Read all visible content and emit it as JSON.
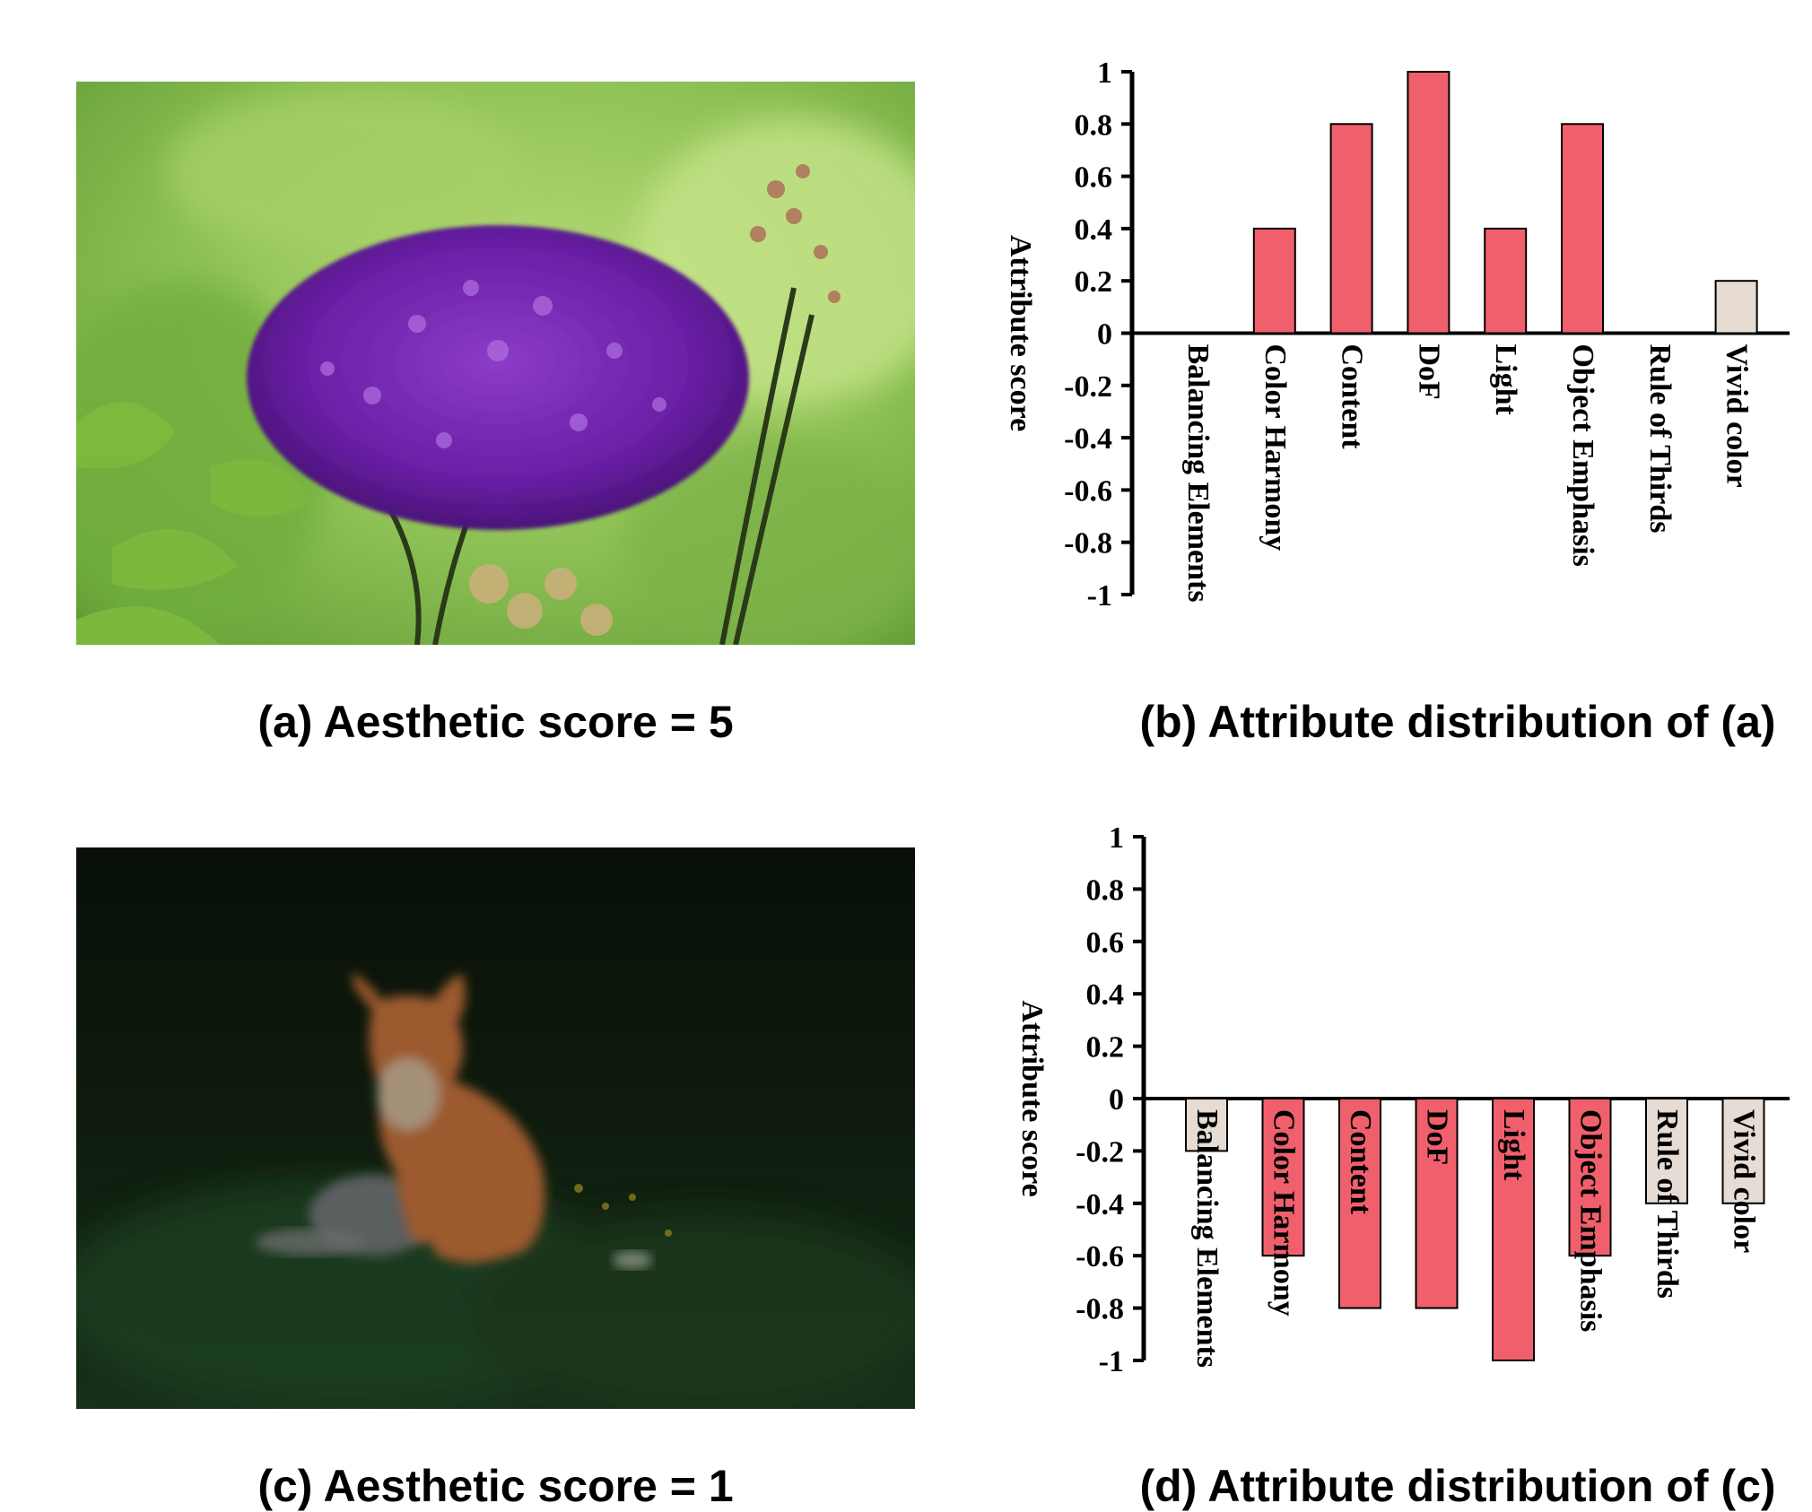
{
  "panels": {
    "a": {
      "caption": "(a) Aesthetic score = 5"
    },
    "b": {
      "caption": "(b) Attribute distribution of (a)"
    },
    "c": {
      "caption": "(c) Aesthetic score = 1"
    },
    "d": {
      "caption": "(d) Attribute distribution of (c)"
    }
  },
  "colors": {
    "bar_main": "#f0606c",
    "bar_light": "#e6dcd4",
    "axis": "#000000"
  },
  "chart_data": [
    {
      "type": "bar",
      "ylabel": "Attribute score",
      "ylim": [
        -1,
        1
      ],
      "yticks": [
        "1",
        "0.8",
        "0.6",
        "0.4",
        "0.2",
        "0",
        "-0.2",
        "-0.4",
        "-0.6",
        "-0.8",
        "-1"
      ],
      "categories": [
        "Balancing Elements",
        "Color Harmony",
        "Content",
        "DoF",
        "Light",
        "Object Emphasis",
        "Rule of Thirds",
        "Vivid color"
      ],
      "values": [
        0,
        0.4,
        0.8,
        1.0,
        0.4,
        0.8,
        0,
        0.2
      ],
      "bar_colors": [
        "main",
        "main",
        "main",
        "main",
        "main",
        "main",
        "main",
        "light"
      ],
      "grid": false
    },
    {
      "type": "bar",
      "ylabel": "Attribute score",
      "ylim": [
        -1,
        1
      ],
      "yticks": [
        "1",
        "0.8",
        "0.6",
        "0.4",
        "0.2",
        "0",
        "-0.2",
        "-0.4",
        "-0.6",
        "-0.8",
        "-1"
      ],
      "categories": [
        "Balancing Elements",
        "Color Harmony",
        "Content",
        "DoF",
        "Light",
        "Object Emphasis",
        "Rule of Thirds",
        "Vivid color"
      ],
      "values": [
        -0.2,
        -0.6,
        -0.8,
        -0.8,
        -1.0,
        -0.6,
        -0.4,
        -0.4
      ],
      "bar_colors": [
        "light",
        "main",
        "main",
        "main",
        "main",
        "main",
        "light",
        "light"
      ],
      "grid": false
    }
  ]
}
